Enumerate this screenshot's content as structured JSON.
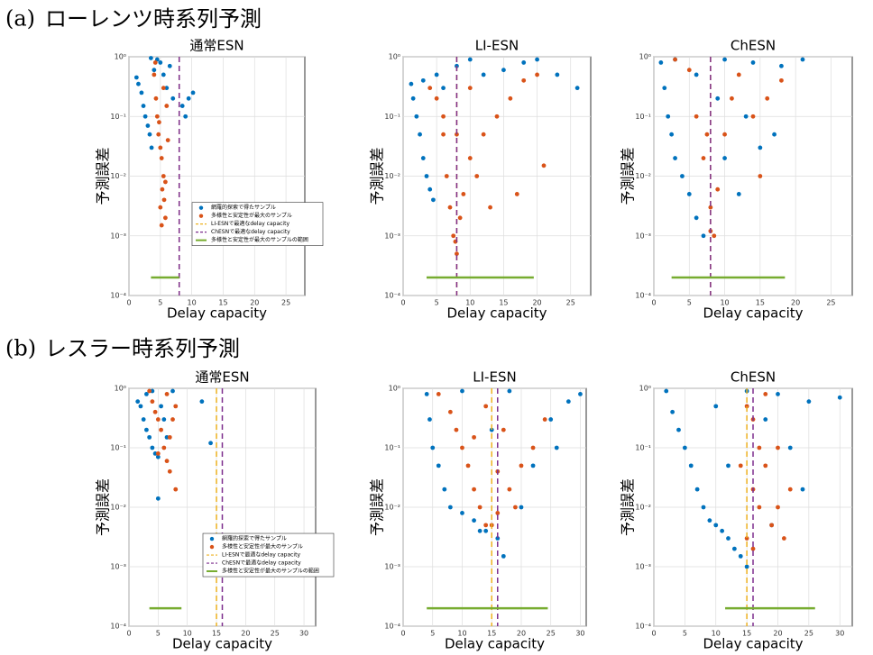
{
  "sections": [
    {
      "label": "(a)",
      "title": "ローレンツ時系列予測"
    },
    {
      "label": "(b)",
      "title": "レスラー時系列予測"
    }
  ],
  "chart_data": [
    {
      "type": "scatter",
      "title": "通常ESN",
      "xlabel": "Delay capacity",
      "ylabel": "予測誤差",
      "log_y": true,
      "grid": true,
      "legend": "center right",
      "xlim": [
        0,
        28
      ],
      "xticks": [
        0,
        5,
        10,
        15,
        20,
        25
      ],
      "ylim": [
        0.0001,
        1
      ],
      "yticks": [
        {
          "value": 0.0001,
          "label": "10⁻⁴"
        },
        {
          "value": 0.001,
          "label": "10⁻³"
        },
        {
          "value": 0.01,
          "label": "10⁻²"
        },
        {
          "value": 0.1,
          "label": "10⁻¹"
        },
        {
          "value": 1,
          "label": "10⁰"
        }
      ],
      "series": [
        {
          "name": "網羅的探索で得たサンプル",
          "color": "#0072BD",
          "x": [
            1.2,
            1.5,
            2,
            2.3,
            2.6,
            3,
            3.3,
            3.6,
            4,
            4.5,
            5,
            5.5,
            6,
            7,
            8.5,
            9.5,
            10.2,
            3.5,
            6.5,
            9
          ],
          "y": [
            0.45,
            0.35,
            0.25,
            0.15,
            0.1,
            0.07,
            0.05,
            0.03,
            0.6,
            0.9,
            0.8,
            0.5,
            0.3,
            0.2,
            0.15,
            0.2,
            0.25,
            0.95,
            0.7,
            0.1
          ]
        },
        {
          "name": "多様性と安定性が最大のサンプル",
          "color": "#D95319",
          "x": [
            4,
            4.3,
            4.5,
            4.7,
            5,
            5.2,
            5.5,
            5.3,
            5.6,
            5.2,
            5.8,
            4.8,
            5.5,
            6,
            4.2,
            5.8,
            5,
            6.2
          ],
          "y": [
            0.5,
            0.2,
            0.1,
            0.05,
            0.03,
            0.02,
            0.01,
            0.006,
            0.004,
            0.0015,
            0.002,
            0.08,
            0.3,
            0.15,
            0.8,
            0.008,
            0.003,
            0.04
          ]
        }
      ],
      "vlines": [
        {
          "name": "LI-ESNで最適なdelay capacity",
          "color": "#EDB120",
          "x": 8
        },
        {
          "name": "ChESNで最適なdelay capacity",
          "color": "#7E2F8E",
          "x": 8
        }
      ],
      "range": {
        "name": "多様性と安定性が最大のサンプルの範囲",
        "color": "#77AC30",
        "x": [
          3.5,
          8
        ],
        "y": 0.0002
      }
    },
    {
      "type": "scatter",
      "title": "LI-ESN",
      "xlabel": "Delay capacity",
      "ylabel": "予測誤差",
      "log_y": true,
      "grid": true,
      "xlim": [
        0,
        28
      ],
      "xticks": [
        0,
        5,
        10,
        15,
        20,
        25
      ],
      "ylim": [
        0.0001,
        1
      ],
      "yticks": [
        {
          "value": 0.0001,
          "label": "10⁻⁴"
        },
        {
          "value": 0.001,
          "label": "10⁻³"
        },
        {
          "value": 0.01,
          "label": "10⁻²"
        },
        {
          "value": 0.1,
          "label": "10⁻¹"
        },
        {
          "value": 1,
          "label": "10⁰"
        }
      ],
      "series": [
        {
          "color": "#0072BD",
          "x": [
            1.2,
            1.5,
            2,
            2.5,
            3,
            3.5,
            4,
            4.5,
            3,
            5,
            8,
            12,
            15,
            18,
            20,
            23,
            26,
            10,
            6
          ],
          "y": [
            0.35,
            0.2,
            0.1,
            0.05,
            0.02,
            0.01,
            0.006,
            0.004,
            0.4,
            0.5,
            0.7,
            0.5,
            0.6,
            0.8,
            0.9,
            0.5,
            0.3,
            0.9,
            0.3
          ]
        },
        {
          "color": "#D95319",
          "x": [
            4,
            5,
            6,
            6.5,
            7,
            7.5,
            8,
            7.8,
            8.5,
            9,
            10,
            12,
            14,
            16,
            18,
            20,
            21,
            17,
            13,
            6,
            10,
            8,
            11
          ],
          "y": [
            0.3,
            0.2,
            0.05,
            0.01,
            0.003,
            0.001,
            0.0005,
            0.0008,
            0.002,
            0.005,
            0.02,
            0.05,
            0.1,
            0.2,
            0.4,
            0.5,
            0.015,
            0.005,
            0.003,
            0.1,
            0.3,
            0.05,
            0.01
          ]
        }
      ],
      "vlines": [
        {
          "color": "#EDB120",
          "x": 8
        },
        {
          "color": "#7E2F8E",
          "x": 8
        }
      ],
      "range": {
        "color": "#77AC30",
        "x": [
          3.5,
          19.5
        ],
        "y": 0.0002
      }
    },
    {
      "type": "scatter",
      "title": "ChESN",
      "xlabel": "Delay capacity",
      "ylabel": "予測誤差",
      "log_y": true,
      "grid": true,
      "xlim": [
        0,
        28
      ],
      "xticks": [
        0,
        5,
        10,
        15,
        20,
        25
      ],
      "ylim": [
        0.0001,
        1
      ],
      "yticks": [
        {
          "value": 0.0001,
          "label": "10⁻⁴"
        },
        {
          "value": 0.001,
          "label": "10⁻³"
        },
        {
          "value": 0.01,
          "label": "10⁻²"
        },
        {
          "value": 0.1,
          "label": "10⁻¹"
        },
        {
          "value": 1,
          "label": "10⁰"
        }
      ],
      "series": [
        {
          "color": "#0072BD",
          "x": [
            1,
            1.5,
            2,
            2.5,
            3,
            4,
            5,
            6,
            7,
            3,
            6,
            10,
            14,
            18,
            21,
            10,
            12,
            15,
            13,
            9,
            17
          ],
          "y": [
            0.8,
            0.3,
            0.1,
            0.05,
            0.02,
            0.01,
            0.005,
            0.002,
            0.001,
            0.9,
            0.5,
            0.9,
            0.8,
            0.7,
            0.9,
            0.02,
            0.005,
            0.03,
            0.1,
            0.2,
            0.05
          ]
        },
        {
          "color": "#D95319",
          "x": [
            3,
            5,
            6,
            7,
            8,
            8.5,
            9,
            10,
            11,
            12,
            14,
            16,
            18,
            15,
            8,
            7.5
          ],
          "y": [
            0.9,
            0.6,
            0.1,
            0.02,
            0.003,
            0.001,
            0.006,
            0.05,
            0.2,
            0.5,
            0.1,
            0.2,
            0.4,
            0.01,
            0.0012,
            0.05
          ]
        }
      ],
      "vlines": [
        {
          "color": "#EDB120",
          "x": 8
        },
        {
          "color": "#7E2F8E",
          "x": 8
        }
      ],
      "range": {
        "color": "#77AC30",
        "x": [
          2.5,
          18.5
        ],
        "y": 0.0002
      }
    },
    {
      "type": "scatter",
      "title": "通常ESN",
      "xlabel": "Delay capacity",
      "ylabel": "予測誤差",
      "log_y": true,
      "grid": true,
      "legend": "center right",
      "xlim": [
        0,
        32
      ],
      "xticks": [
        0,
        5,
        10,
        15,
        20,
        25,
        30
      ],
      "ylim": [
        0.0001,
        1
      ],
      "yticks": [
        {
          "value": 0.0001,
          "label": "10⁻⁴"
        },
        {
          "value": 0.001,
          "label": "10⁻³"
        },
        {
          "value": 0.01,
          "label": "10⁻²"
        },
        {
          "value": 0.1,
          "label": "10⁻¹"
        },
        {
          "value": 1,
          "label": "10⁰"
        }
      ],
      "series": [
        {
          "name": "網羅的探索で得たサンプル",
          "color": "#0072BD",
          "x": [
            1.5,
            2,
            2.5,
            3,
            3.5,
            4,
            4.5,
            5,
            3,
            4,
            5.5,
            6,
            6.5,
            5,
            7.5,
            12.5,
            14
          ],
          "y": [
            0.6,
            0.5,
            0.3,
            0.2,
            0.15,
            0.1,
            0.08,
            0.07,
            0.8,
            0.9,
            0.5,
            0.3,
            0.15,
            0.014,
            0.9,
            0.6,
            0.12
          ]
        },
        {
          "name": "多様性と安定性が最大のサンプル",
          "color": "#D95319",
          "x": [
            3.5,
            4,
            4.5,
            5,
            5.5,
            6,
            6.5,
            7,
            8,
            7.5,
            8,
            6.5,
            5,
            7
          ],
          "y": [
            0.9,
            0.6,
            0.4,
            0.3,
            0.2,
            0.1,
            0.06,
            0.04,
            0.02,
            0.3,
            0.5,
            0.8,
            0.08,
            0.15
          ]
        }
      ],
      "vlines": [
        {
          "name": "LI-ESNで最適なdelay capacity",
          "color": "#EDB120",
          "x": 15
        },
        {
          "name": "ChESNで最適なdelay capacity",
          "color": "#7E2F8E",
          "x": 16
        }
      ],
      "range": {
        "name": "多様性と安定性が最大のサンプルの範囲",
        "color": "#77AC30",
        "x": [
          3.5,
          9
        ],
        "y": 0.0002
      }
    },
    {
      "type": "scatter",
      "title": "LI-ESN",
      "xlabel": "Delay capacity",
      "ylabel": "予測誤差",
      "log_y": true,
      "grid": true,
      "xlim": [
        0,
        31
      ],
      "xticks": [
        0,
        5,
        10,
        15,
        20,
        25,
        30
      ],
      "ylim": [
        0.0001,
        1
      ],
      "yticks": [
        {
          "value": 0.0001,
          "label": "10⁻⁴"
        },
        {
          "value": 0.001,
          "label": "10⁻³"
        },
        {
          "value": 0.01,
          "label": "10⁻²"
        },
        {
          "value": 0.1,
          "label": "10⁻¹"
        },
        {
          "value": 1,
          "label": "10⁰"
        }
      ],
      "series": [
        {
          "color": "#0072BD",
          "x": [
            4,
            4.5,
            5,
            6,
            7,
            8,
            10,
            12,
            14,
            16,
            17,
            13,
            20,
            22,
            25,
            28,
            30,
            18,
            10,
            15,
            26
          ],
          "y": [
            0.8,
            0.3,
            0.1,
            0.05,
            0.02,
            0.01,
            0.008,
            0.006,
            0.004,
            0.003,
            0.0015,
            0.004,
            0.01,
            0.05,
            0.3,
            0.6,
            0.8,
            0.9,
            0.9,
            0.2,
            0.1
          ]
        },
        {
          "color": "#D95319",
          "x": [
            6,
            8,
            9,
            10,
            11,
            12,
            13,
            14,
            15,
            16,
            18,
            20,
            22,
            24,
            14,
            17,
            12,
            19,
            16
          ],
          "y": [
            0.8,
            0.4,
            0.2,
            0.1,
            0.05,
            0.02,
            0.01,
            0.005,
            0.005,
            0.008,
            0.02,
            0.05,
            0.1,
            0.3,
            0.5,
            0.2,
            0.15,
            0.01,
            0.04
          ]
        }
      ],
      "vlines": [
        {
          "color": "#EDB120",
          "x": 15
        },
        {
          "color": "#7E2F8E",
          "x": 16
        }
      ],
      "range": {
        "color": "#77AC30",
        "x": [
          4,
          24.5
        ],
        "y": 0.0002
      }
    },
    {
      "type": "scatter",
      "title": "ChESN",
      "xlabel": "Delay capacity",
      "ylabel": "予測誤差",
      "log_y": true,
      "grid": true,
      "xlim": [
        0,
        32
      ],
      "xticks": [
        0,
        5,
        10,
        15,
        20,
        25,
        30
      ],
      "ylim": [
        0.0001,
        1
      ],
      "yticks": [
        {
          "value": 0.0001,
          "label": "10⁻⁴"
        },
        {
          "value": 0.001,
          "label": "10⁻³"
        },
        {
          "value": 0.01,
          "label": "10⁻²"
        },
        {
          "value": 0.1,
          "label": "10⁻¹"
        },
        {
          "value": 1,
          "label": "10⁰"
        }
      ],
      "series": [
        {
          "color": "#0072BD",
          "x": [
            2,
            3,
            4,
            5,
            6,
            7,
            8,
            9,
            10,
            11,
            12,
            13,
            14,
            15,
            10,
            15,
            20,
            25,
            30,
            22,
            24,
            19,
            12,
            18
          ],
          "y": [
            0.9,
            0.4,
            0.2,
            0.1,
            0.05,
            0.02,
            0.01,
            0.006,
            0.005,
            0.004,
            0.003,
            0.002,
            0.0015,
            0.001,
            0.5,
            0.9,
            0.8,
            0.6,
            0.7,
            0.1,
            0.02,
            0.005,
            0.05,
            0.3
          ]
        },
        {
          "color": "#D95319",
          "x": [
            15,
            16,
            17,
            18,
            16,
            17,
            15,
            19,
            20,
            21,
            14,
            22,
            18,
            16,
            20
          ],
          "y": [
            0.5,
            0.3,
            0.1,
            0.05,
            0.02,
            0.01,
            0.003,
            0.005,
            0.01,
            0.003,
            0.05,
            0.02,
            0.8,
            0.002,
            0.1
          ]
        }
      ],
      "vlines": [
        {
          "color": "#EDB120",
          "x": 15
        },
        {
          "color": "#7E2F8E",
          "x": 16
        }
      ],
      "range": {
        "color": "#77AC30",
        "x": [
          11.5,
          26
        ],
        "y": 0.0002
      }
    }
  ]
}
